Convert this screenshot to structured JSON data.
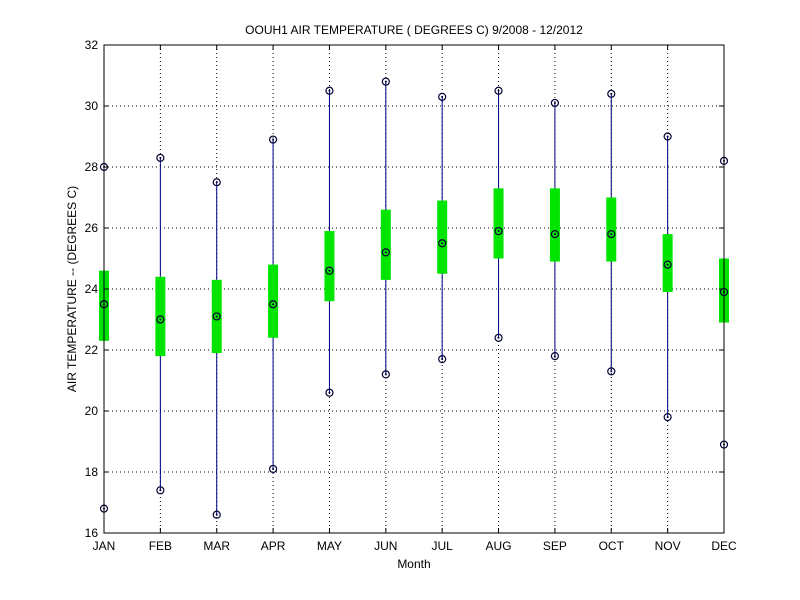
{
  "chart_data": {
    "type": "box",
    "title": "OOUH1  AIR TEMPERATURE ( DEGREES C) 9/2008 - 12/2012",
    "xlabel": "Month",
    "ylabel": "AIR TEMPERATURE -- (DEGREES C)",
    "ylim": [
      16,
      32
    ],
    "yticks": [
      16,
      18,
      20,
      22,
      24,
      26,
      28,
      30,
      32
    ],
    "grid": true,
    "categories": [
      "JAN",
      "FEB",
      "MAR",
      "APR",
      "MAY",
      "JUN",
      "JUL",
      "AUG",
      "SEP",
      "OCT",
      "NOV",
      "DEC"
    ],
    "series": [
      {
        "min": [
          16.8,
          17.4,
          16.6,
          18.1,
          20.6,
          21.2,
          21.7,
          22.4,
          21.8,
          21.3,
          19.8,
          18.9
        ],
        "q1": [
          22.3,
          21.8,
          21.9,
          22.4,
          23.6,
          24.3,
          24.5,
          25.0,
          24.9,
          24.9,
          23.9,
          22.9
        ],
        "median": [
          23.5,
          23.0,
          23.1,
          23.5,
          24.6,
          25.2,
          25.5,
          25.9,
          25.8,
          25.8,
          24.8,
          23.9
        ],
        "q3": [
          24.6,
          24.4,
          24.3,
          24.8,
          25.9,
          26.6,
          26.9,
          27.3,
          27.3,
          27.0,
          25.8,
          25.0
        ],
        "max": [
          28.0,
          28.3,
          27.5,
          28.9,
          30.5,
          30.8,
          30.3,
          30.5,
          30.1,
          30.4,
          29.0,
          28.2
        ]
      }
    ],
    "colors": {
      "box": "#00e400",
      "whisker": "#00008b",
      "marker": "#000033",
      "grid": "#000000"
    }
  }
}
